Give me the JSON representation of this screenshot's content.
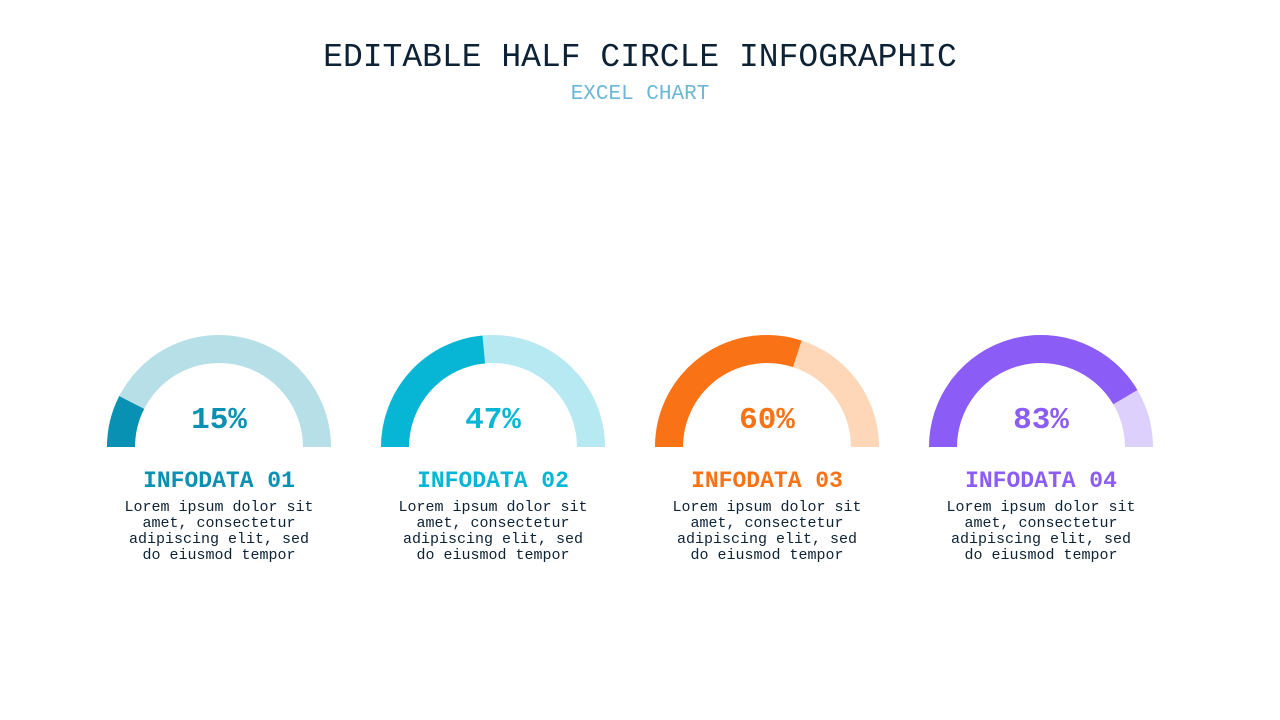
{
  "header": {
    "title": "EDITABLE HALF CIRCLE INFOGRAPHIC",
    "subtitle": "EXCEL CHART"
  },
  "chart_data": {
    "type": "half-donut",
    "series": [
      {
        "name": "INFODATA 01",
        "value": 15,
        "value_label": "15%",
        "description": "Lorem ipsum dolor sit amet, consectetur adipiscing elit, sed do eiusmod tempor",
        "color": "#0891b2",
        "track_color": "#b6dfe8"
      },
      {
        "name": "INFODATA 02",
        "value": 47,
        "value_label": "47%",
        "description": "Lorem ipsum dolor sit amet, consectetur adipiscing elit, sed do eiusmod tempor",
        "color": "#06b6d4",
        "track_color": "#b6e9f2"
      },
      {
        "name": "INFODATA 03",
        "value": 60,
        "value_label": "60%",
        "description": "Lorem ipsum dolor sit amet, consectetur adipiscing elit, sed do eiusmod tempor",
        "color": "#f97316",
        "track_color": "#fed7b8"
      },
      {
        "name": "INFODATA 04",
        "value": 83,
        "value_label": "83%",
        "description": "Lorem ipsum dolor sit amet, consectetur adipiscing elit, sed do eiusmod tempor",
        "color": "#8b5cf6",
        "track_color": "#ddd0fc"
      }
    ]
  }
}
